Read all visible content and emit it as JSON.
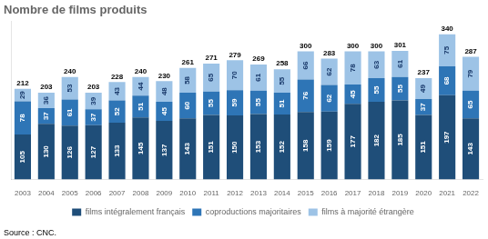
{
  "chart_data": {
    "type": "bar",
    "title": "Nombre de films produits",
    "annotations": [
      "Source : CNC."
    ],
    "categories": [
      "2003",
      "2004",
      "2005",
      "2006",
      "2007",
      "2008",
      "2009",
      "2010",
      "2011",
      "2012",
      "2013",
      "2014",
      "2015",
      "2016",
      "2017",
      "2018",
      "2019",
      "2020",
      "2021",
      "2022"
    ],
    "series": [
      {
        "name": "films intégralement français",
        "color": "#1f4e79",
        "values": [
          105,
          130,
          126,
          127,
          133,
          145,
          137,
          143,
          151,
          150,
          153,
          152,
          158,
          159,
          177,
          182,
          185,
          151,
          197,
          143
        ]
      },
      {
        "name": "coproductions majoritaires",
        "color": "#2e75b6",
        "values": [
          78,
          37,
          61,
          37,
          52,
          51,
          45,
          60,
          55,
          59,
          55,
          51,
          76,
          62,
          45,
          55,
          55,
          37,
          68,
          65
        ]
      },
      {
        "name": "films à majorité étrangère",
        "color": "#9dc3e6",
        "values": [
          29,
          36,
          53,
          39,
          43,
          44,
          48,
          58,
          65,
          70,
          61,
          55,
          66,
          62,
          78,
          63,
          61,
          49,
          75,
          79
        ]
      }
    ],
    "totals": [
      212,
      203,
      240,
      203,
      228,
      240,
      230,
      261,
      271,
      279,
      269,
      258,
      300,
      283,
      300,
      300,
      301,
      237,
      340,
      287
    ],
    "stacked": true,
    "data_labels": true,
    "ylim": [
      0,
      370
    ],
    "tick_labels": "x",
    "grid": false,
    "legend": "bottom"
  }
}
